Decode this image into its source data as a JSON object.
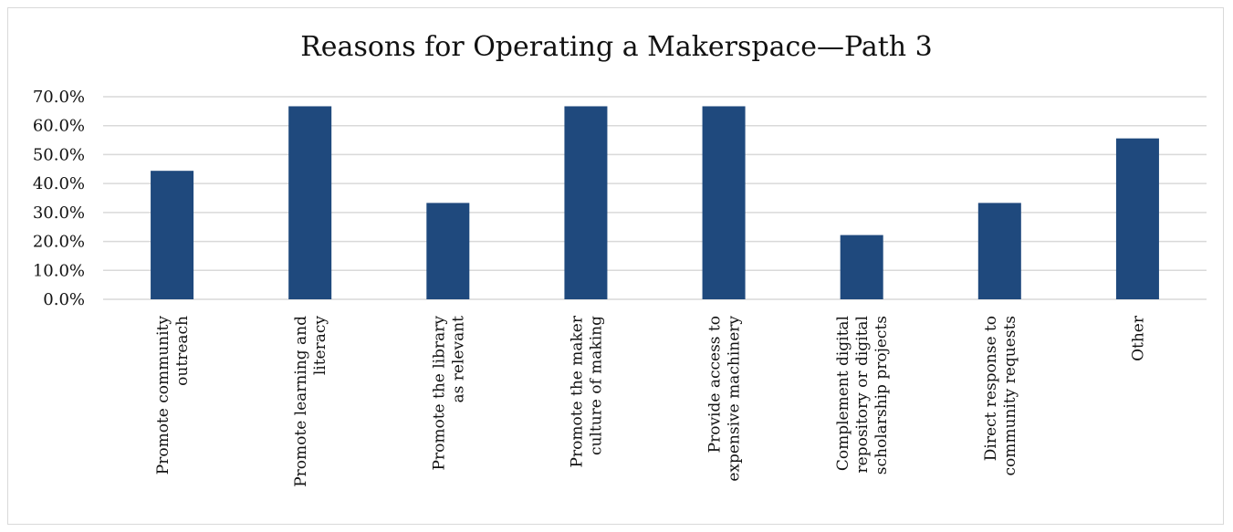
{
  "chart_data": {
    "type": "bar",
    "title": "Reasons for Operating a Makerspace—Path 3",
    "xlabel": "",
    "ylabel": "",
    "ylim": [
      0,
      70
    ],
    "y_ticks": [
      "0.0%",
      "10.0%",
      "20.0%",
      "30.0%",
      "40.0%",
      "50.0%",
      "60.0%",
      "70.0%"
    ],
    "grid": true,
    "legend": "none",
    "bar_color": "#1f497d",
    "categories": [
      [
        "Promote community",
        "outreach"
      ],
      [
        "Promote learning and",
        "literacy"
      ],
      [
        "Promote the library",
        "as relevant"
      ],
      [
        "Promote the maker",
        "culture of making"
      ],
      [
        "Provide access to",
        "expensive machinery"
      ],
      [
        "Complement digital",
        "repository or digital",
        "scholarship projects"
      ],
      [
        "Direct response to",
        "community requests"
      ],
      [
        "Other"
      ]
    ],
    "values": [
      44.4,
      66.7,
      33.3,
      66.7,
      66.7,
      22.2,
      33.3,
      55.6
    ]
  }
}
